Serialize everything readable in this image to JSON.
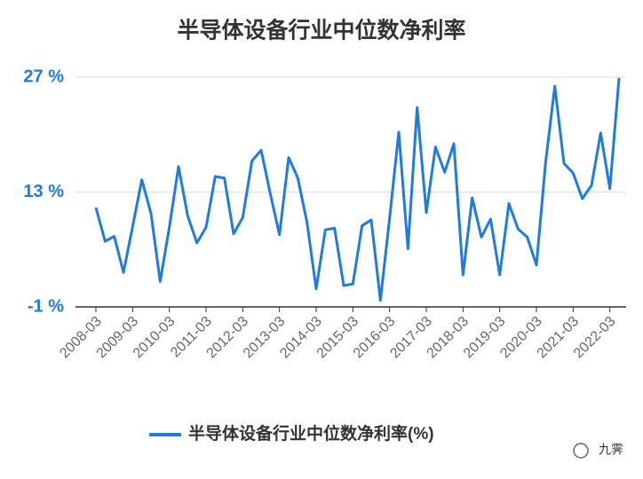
{
  "chart_data": {
    "type": "line",
    "title": "半导体设备行业中位数净利率",
    "categories": [
      "2008-03",
      null,
      null,
      null,
      "2009-03",
      null,
      null,
      null,
      "2010-03",
      null,
      null,
      null,
      "2011-03",
      null,
      null,
      null,
      "2012-03",
      null,
      null,
      null,
      "2013-03",
      null,
      null,
      null,
      "2014-03",
      null,
      null,
      null,
      "2015-03",
      null,
      null,
      null,
      "2016-03",
      null,
      null,
      null,
      "2017-03",
      null,
      null,
      null,
      "2018-03",
      null,
      null,
      null,
      "2019-03",
      null,
      null,
      null,
      "2020-03",
      null,
      null,
      null,
      "2021-03",
      null,
      null,
      null,
      "2022-03",
      null
    ],
    "series": [
      {
        "name": "半导体设备行业中位数净利率(%)",
        "color": "#1e7be0",
        "values": [
          11.1,
          7.0,
          7.6,
          3.2,
          8.8,
          14.5,
          10.4,
          2.1,
          8.7,
          16.1,
          10.1,
          6.8,
          8.7,
          14.9,
          14.7,
          7.9,
          9.9,
          16.8,
          18.1,
          12.8,
          7.8,
          17.2,
          14.7,
          9.3,
          1.2,
          8.4,
          8.6,
          1.6,
          1.8,
          8.9,
          9.6,
          -0.2,
          9.8,
          20.3,
          6.1,
          23.3,
          10.5,
          18.5,
          15.4,
          18.9,
          2.9,
          12.3,
          7.5,
          9.7,
          2.9,
          11.6,
          8.5,
          7.5,
          4.1,
          16.6,
          25.9,
          16.5,
          15.3,
          12.2,
          13.8,
          20.2,
          13.4,
          26.9
        ]
      }
    ],
    "ylim": [
      -1,
      27
    ],
    "yticks": [
      {
        "value": -1,
        "label": "-1 %"
      },
      {
        "value": 13,
        "label": "13 %"
      },
      {
        "value": 27,
        "label": "27 %"
      }
    ],
    "grid": true,
    "legend": "bottom",
    "watermark": "九霁"
  }
}
